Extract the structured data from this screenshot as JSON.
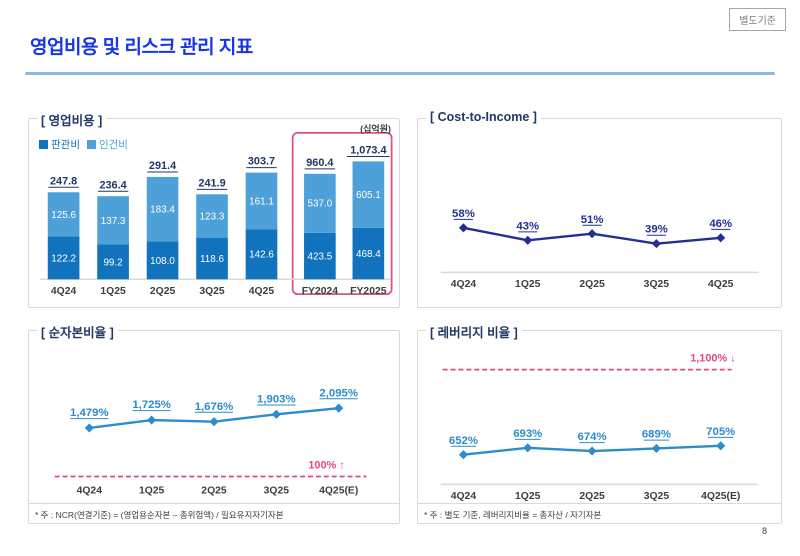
{
  "page": {
    "badge": "별도기준",
    "title": "영업비용 및 리스크 관리 지표",
    "page_number": "8"
  },
  "theme": {
    "title_blue": "#1636e3",
    "underline_blue": "#8fb8ea",
    "navy": "#1f3864",
    "pink": "#df4a81",
    "axis_gray": "#d9d9d9",
    "category_text": "#3d3d3d"
  },
  "chart_data": [
    {
      "id": "opex",
      "type": "bar",
      "stacked": true,
      "title": "[ 영업비용 ]",
      "unit": "(십억원)",
      "categories": [
        "4Q24",
        "1Q25",
        "2Q25",
        "3Q25",
        "4Q25",
        "FY2024",
        "FY2025"
      ],
      "series": [
        {
          "name": "판관비",
          "color": "#1173bd",
          "values": [
            122.2,
            99.2,
            108.0,
            118.6,
            142.6,
            423.5,
            468.4
          ]
        },
        {
          "name": "인건비",
          "color": "#4da0d8",
          "values": [
            125.6,
            137.3,
            183.4,
            123.3,
            161.1,
            537.0,
            605.1
          ]
        }
      ],
      "totals": [
        "247.8",
        "236.4",
        "291.4",
        "241.9",
        "303.7",
        "960.4",
        "1,073.4"
      ],
      "highlight_group": [
        "FY2024",
        "FY2025"
      ],
      "highlight_color": "#db5285",
      "legend_position": "top-left",
      "grid": false
    },
    {
      "id": "cost_to_income",
      "type": "line",
      "title": "[ Cost-to-Income ]",
      "categories": [
        "4Q24",
        "1Q25",
        "2Q25",
        "3Q25",
        "4Q25"
      ],
      "values": [
        58,
        43,
        51,
        39,
        46
      ],
      "labels": [
        "58%",
        "43%",
        "51%",
        "39%",
        "46%"
      ],
      "color": "#232f93",
      "marker": "diamond",
      "grid": false
    },
    {
      "id": "ncr",
      "type": "line",
      "title": "[ 순자본비율 ]",
      "categories": [
        "4Q24",
        "1Q25",
        "2Q25",
        "3Q25",
        "4Q25(E)"
      ],
      "values": [
        1479,
        1725,
        1676,
        1903,
        2095
      ],
      "labels": [
        "1,479%",
        "1,725%",
        "1,676%",
        "1,903%",
        "2,095%"
      ],
      "color": "#2e8bcc",
      "marker": "diamond",
      "grid": false,
      "threshold": {
        "label": "100% ↑",
        "position": "bottom",
        "color": "#df4a81",
        "style": "dashed"
      },
      "footnote": "* 주 : NCR(연결기준) = (영업용순자본 – 총위험액) / 필요유지자기자본"
    },
    {
      "id": "leverage",
      "type": "line",
      "title": "[ 레버리지 비율 ]",
      "categories": [
        "4Q24",
        "1Q25",
        "2Q25",
        "3Q25",
        "4Q25(E)"
      ],
      "values": [
        652,
        693,
        674,
        689,
        705
      ],
      "labels": [
        "652%",
        "693%",
        "674%",
        "689%",
        "705%"
      ],
      "color": "#2e8bcc",
      "marker": "diamond",
      "grid": false,
      "threshold": {
        "label": "1,100% ↓",
        "position": "top",
        "color": "#df4a81",
        "style": "dashed"
      },
      "footnote": "* 주 : 별도 기준, 레버리지비율 = 총자산 / 자기자본"
    }
  ]
}
